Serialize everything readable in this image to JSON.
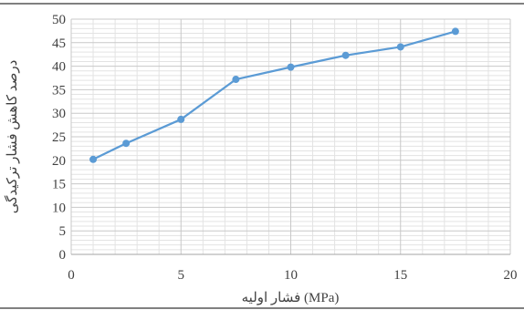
{
  "chart_data": {
    "type": "line",
    "title": "",
    "xlabel": "فشار اولیه (MPa)",
    "ylabel": "درصد کاهش فشار ترکیدگی",
    "xlim": [
      0,
      20
    ],
    "ylim": [
      0,
      50
    ],
    "x_ticks": [
      0,
      5,
      10,
      15,
      20
    ],
    "y_ticks": [
      0,
      5,
      10,
      15,
      20,
      25,
      30,
      35,
      40,
      45,
      50
    ],
    "grid": true,
    "legend": "none",
    "series": [
      {
        "color": "#5b9bd5",
        "x": [
          1,
          2.5,
          5,
          7.5,
          10,
          12.5,
          15,
          17.5
        ],
        "y": [
          20.2,
          23.6,
          28.7,
          37.2,
          39.8,
          42.3,
          44.1,
          47.4
        ]
      }
    ]
  }
}
